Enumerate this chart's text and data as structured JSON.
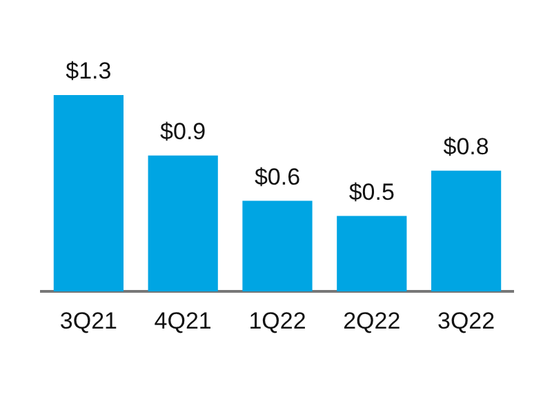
{
  "chart_data": {
    "type": "bar",
    "tick_labels": "x",
    "categories": [
      "3Q21",
      "4Q21",
      "1Q22",
      "2Q22",
      "3Q22"
    ],
    "values": [
      1.3,
      0.9,
      0.6,
      0.5,
      0.8
    ],
    "value_labels": [
      "$1.3",
      "$0.9",
      "$0.6",
      "$0.5",
      "$0.8"
    ],
    "color": "#00a5e3",
    "grid": false,
    "legend": false
  }
}
